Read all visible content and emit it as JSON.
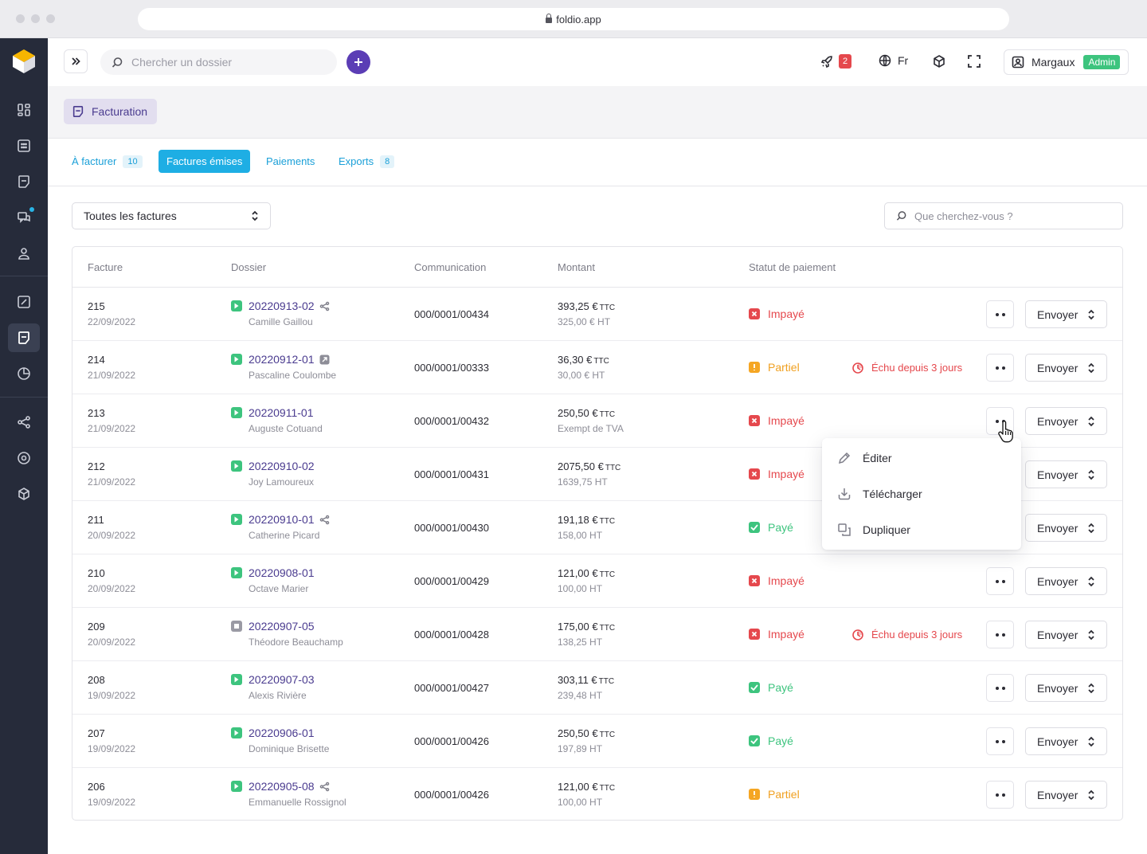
{
  "browser": {
    "url": "foldio.app"
  },
  "sidebar": {
    "items": [
      {
        "icon": "dashboard-icon"
      },
      {
        "icon": "calendar-grid-icon"
      },
      {
        "icon": "document-icon"
      },
      {
        "icon": "chat-icon",
        "has_badge": true
      },
      {
        "icon": "user-icon"
      },
      {
        "icon": "calculator-icon"
      },
      {
        "icon": "invoice-icon",
        "active": true
      },
      {
        "icon": "pie-chart-icon"
      },
      {
        "icon": "share-icon"
      },
      {
        "icon": "target-icon"
      },
      {
        "icon": "cube-icon"
      }
    ]
  },
  "topbar": {
    "search_placeholder": "Chercher un dossier",
    "notifications_count": "2",
    "language": "Fr",
    "user_name": "Margaux",
    "user_role": "Admin"
  },
  "page": {
    "breadcrumb": "Facturation"
  },
  "tabs": [
    {
      "label": "À facturer",
      "count": "10"
    },
    {
      "label": "Factures émises",
      "active": true
    },
    {
      "label": "Paiements"
    },
    {
      "label": "Exports",
      "count": "8"
    }
  ],
  "filters": {
    "select_value": "Toutes les factures",
    "search_placeholder": "Que cherchez-vous ?"
  },
  "table": {
    "columns": [
      "Facture",
      "Dossier",
      "Communication",
      "Montant",
      "Statut de paiement"
    ],
    "send_label": "Envoyer",
    "rows": [
      {
        "number": "215",
        "date": "22/09/2022",
        "dossier": "20220913-02",
        "dossier_icon": "share-icon",
        "client": "Camille Gaillou",
        "communication": "000/0001/00434",
        "amount": "393,25 €",
        "amount_unit": "TTC",
        "sub_amount": "325,00 € HT",
        "status": "Impayé",
        "status_type": "unpaid",
        "due": ""
      },
      {
        "number": "214",
        "date": "21/09/2022",
        "dossier": "20220912-01",
        "dossier_icon": "external-link-icon",
        "client": "Pascaline Coulombe",
        "communication": "000/0001/00333",
        "amount": "36,30 €",
        "amount_unit": "TTC",
        "sub_amount": "30,00 € HT",
        "status": "Partiel",
        "status_type": "partial",
        "due": "Échu depuis 3 jours"
      },
      {
        "number": "213",
        "date": "21/09/2022",
        "dossier": "20220911-01",
        "dossier_icon": "",
        "client": "Auguste Cotuand",
        "communication": "000/0001/00432",
        "amount": "250,50 €",
        "amount_unit": "TTC",
        "sub_amount": "Exempt de TVA",
        "status": "Impayé",
        "status_type": "unpaid",
        "due": ""
      },
      {
        "number": "212",
        "date": "21/09/2022",
        "dossier": "20220910-02",
        "dossier_icon": "",
        "client": "Joy Lamoureux",
        "communication": "000/0001/00431",
        "amount": "2075,50 €",
        "amount_unit": "TTC",
        "sub_amount": "1639,75 HT",
        "status": "Impayé",
        "status_type": "unpaid",
        "due": ""
      },
      {
        "number": "211",
        "date": "20/09/2022",
        "dossier": "20220910-01",
        "dossier_icon": "share-icon",
        "client": "Catherine Picard",
        "communication": "000/0001/00430",
        "amount": "191,18 €",
        "amount_unit": "TTC",
        "sub_amount": "158,00 HT",
        "status": "Payé",
        "status_type": "paid",
        "due": ""
      },
      {
        "number": "210",
        "date": "20/09/2022",
        "dossier": "20220908-01",
        "dossier_icon": "",
        "client": "Octave Marier",
        "communication": "000/0001/00429",
        "amount": "121,00 €",
        "amount_unit": "TTC",
        "sub_amount": "100,00 HT",
        "status": "Impayé",
        "status_type": "unpaid",
        "due": ""
      },
      {
        "number": "209",
        "date": "20/09/2022",
        "dossier": "20220907-05",
        "dossier_icon": "",
        "dossier_status": "gray",
        "client": "Théodore Beauchamp",
        "communication": "000/0001/00428",
        "amount": "175,00 €",
        "amount_unit": "TTC",
        "sub_amount": "138,25 HT",
        "status": "Impayé",
        "status_type": "unpaid",
        "due": "Échu depuis 3 jours"
      },
      {
        "number": "208",
        "date": "19/09/2022",
        "dossier": "20220907-03",
        "dossier_icon": "",
        "client": "Alexis Rivière",
        "communication": "000/0001/00427",
        "amount": "303,11 €",
        "amount_unit": "TTC",
        "sub_amount": "239,48 HT",
        "status": "Payé",
        "status_type": "paid",
        "due": ""
      },
      {
        "number": "207",
        "date": "19/09/2022",
        "dossier": "20220906-01",
        "dossier_icon": "",
        "client": "Dominique Brisette",
        "communication": "000/0001/00426",
        "amount": "250,50 €",
        "amount_unit": "TTC",
        "sub_amount": "197,89 HT",
        "status": "Payé",
        "status_type": "paid",
        "due": ""
      },
      {
        "number": "206",
        "date": "19/09/2022",
        "dossier": "20220905-08",
        "dossier_icon": "share-icon",
        "client": "Emmanuelle Rossignol",
        "communication": "000/0001/00426",
        "amount": "121,00 €",
        "amount_unit": "TTC",
        "sub_amount": "100,00 HT",
        "status": "Partiel",
        "status_type": "partial",
        "due": ""
      }
    ]
  },
  "row_menu": {
    "items": [
      {
        "label": "Éditer",
        "icon": "pencil-icon"
      },
      {
        "label": "Télécharger",
        "icon": "download-icon"
      },
      {
        "label": "Dupliquer",
        "icon": "duplicate-icon"
      }
    ]
  },
  "colors": {
    "sidebar_bg": "#262b3a",
    "brand_purple": "#5b3db5",
    "tab_active": "#1eaee4",
    "unpaid": "#e5484d",
    "partial": "#f5a623",
    "paid": "#3dc47e"
  }
}
